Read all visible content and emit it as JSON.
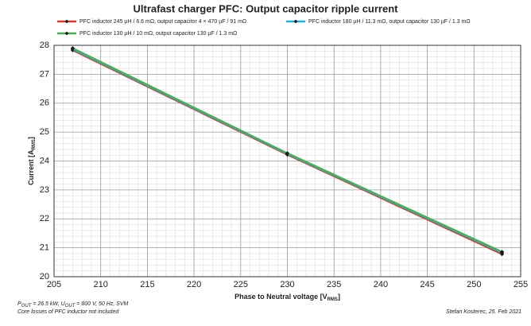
{
  "chart_data": {
    "type": "line",
    "title": "Ultrafast charger PFC: Output capacitor ripple current",
    "x_label": [
      {
        "text": "Phase to Neutral voltage [V"
      },
      {
        "text": "RMS",
        "sub": true
      },
      {
        "text": "]"
      }
    ],
    "y_label": [
      {
        "text": "Current [A"
      },
      {
        "text": "RMS",
        "sub": true
      },
      {
        "text": "]"
      }
    ],
    "x": [
      207,
      230,
      253
    ],
    "series": [
      {
        "name": "PFC inductor 245 µH / 6.6 mΩ, output capacitor 4 × 470 µF / 91 mΩ",
        "color": "#e0392c",
        "values": [
          27.83,
          24.22,
          20.78
        ]
      },
      {
        "name": "PFC inductor 180 µH / 11.3 mΩ, output capacitor 130 µF / 1.3 mΩ",
        "color": "#1fb3e6",
        "values": [
          27.87,
          24.25,
          20.83
        ]
      },
      {
        "name": "PFC inductor 130 µH / 10 mΩ, output capacitor 130 µF / 1.3 mΩ",
        "color": "#3db54a",
        "values": [
          27.9,
          24.27,
          20.86
        ]
      }
    ],
    "marker_color": "#1a1a1a",
    "xlim": [
      205,
      255
    ],
    "xticks": [
      205,
      210,
      215,
      220,
      225,
      230,
      235,
      240,
      245,
      250,
      255
    ],
    "ylim": [
      20,
      28
    ],
    "yticks": [
      20,
      21,
      22,
      23,
      24,
      25,
      26,
      27,
      28
    ],
    "grid": true,
    "minor_grid": true,
    "notes": [
      [
        {
          "text": "P"
        },
        {
          "text": "OUT",
          "sub": true
        },
        {
          "text": " = 26.5 kW, U"
        },
        {
          "text": "OUT",
          "sub": true
        },
        {
          "text": " = 800 V, 50 Hz, SVM"
        }
      ],
      [
        {
          "text": "Core losses of PFC inductor not included"
        }
      ]
    ],
    "author": "Stefan Kosterec, 25. Feb 2021"
  }
}
